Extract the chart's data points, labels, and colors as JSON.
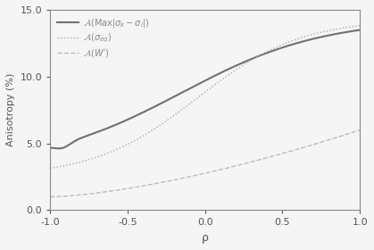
{
  "title": "",
  "xlabel": "ρ",
  "ylabel": "Anisotropy (%)",
  "xlim": [
    -1.0,
    1.0
  ],
  "ylim": [
    0.0,
    15.0
  ],
  "xticks": [
    -1.0,
    -0.5,
    0.0,
    0.5,
    1.0
  ],
  "yticks": [
    0.0,
    5.0,
    10.0,
    15.0
  ],
  "legend_labels": [
    "$\\mathcal{A}(\\mathrm{Max}|\\sigma_k - \\sigma_l|)$",
    "$\\mathcal{A}(\\sigma_{eq})$",
    "$\\mathcal{A}(W')$"
  ],
  "line1_color": "#707070",
  "line2_color": "#aaaaaa",
  "line3_color": "#bbbbbb",
  "background_color": "#f5f5f5"
}
